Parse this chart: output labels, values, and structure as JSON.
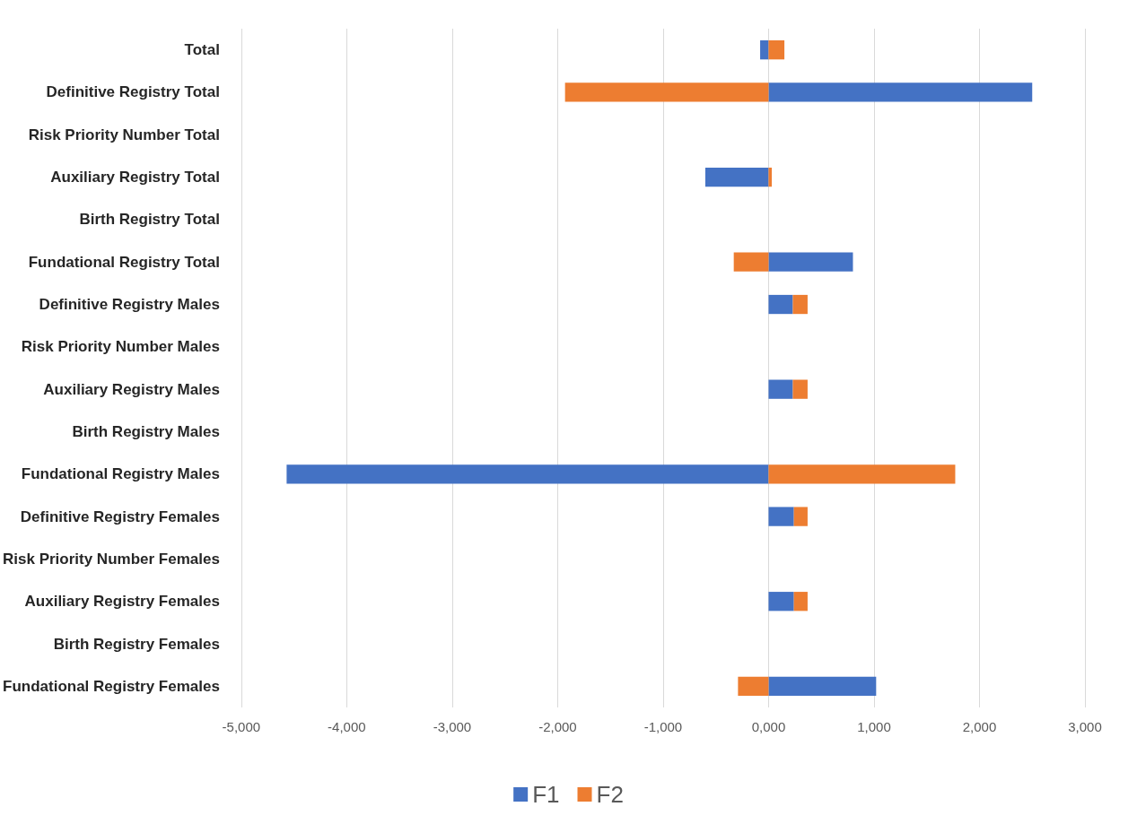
{
  "chart_data": {
    "type": "bar",
    "orientation": "horizontal",
    "stacked": true,
    "categories": [
      "Total",
      "Definitive Registry Total",
      "Risk Priority Number Total",
      "Auxiliary Registry Total",
      "Birth Registry Total",
      "Fundational Registry Total",
      "Definitive Registry Males",
      "Risk Priority Number Males",
      "Auxiliary Registry Males",
      "Birth Registry Males",
      "Fundational Registry Males",
      "Definitive Registry Females",
      "Risk Priority Number Females",
      "Auxiliary Registry Females",
      "Birth Registry Females",
      "Fundational Registry Females"
    ],
    "series": [
      {
        "name": "F1",
        "color": "#4472c4",
        "values": [
          -80,
          2500,
          null,
          -600,
          null,
          800,
          230,
          null,
          230,
          null,
          -4570,
          240,
          null,
          240,
          null,
          1020
        ]
      },
      {
        "name": "F2",
        "color": "#ed7d31",
        "values": [
          150,
          -1930,
          null,
          30,
          null,
          -330,
          140,
          null,
          140,
          null,
          1770,
          130,
          null,
          130,
          null,
          -290
        ]
      }
    ],
    "xlim": [
      -5000,
      3000
    ],
    "xticks": [
      {
        "value": -5000,
        "label": "-5,000"
      },
      {
        "value": -4000,
        "label": "-4,000"
      },
      {
        "value": -3000,
        "label": "-3,000"
      },
      {
        "value": -2000,
        "label": "-2,000"
      },
      {
        "value": -1000,
        "label": "-1,000"
      },
      {
        "value": 0,
        "label": "0,000"
      },
      {
        "value": 1000,
        "label": "1,000"
      },
      {
        "value": 2000,
        "label": "2,000"
      },
      {
        "value": 3000,
        "label": "3,000"
      }
    ],
    "grid": "x",
    "legend": "bottom"
  }
}
